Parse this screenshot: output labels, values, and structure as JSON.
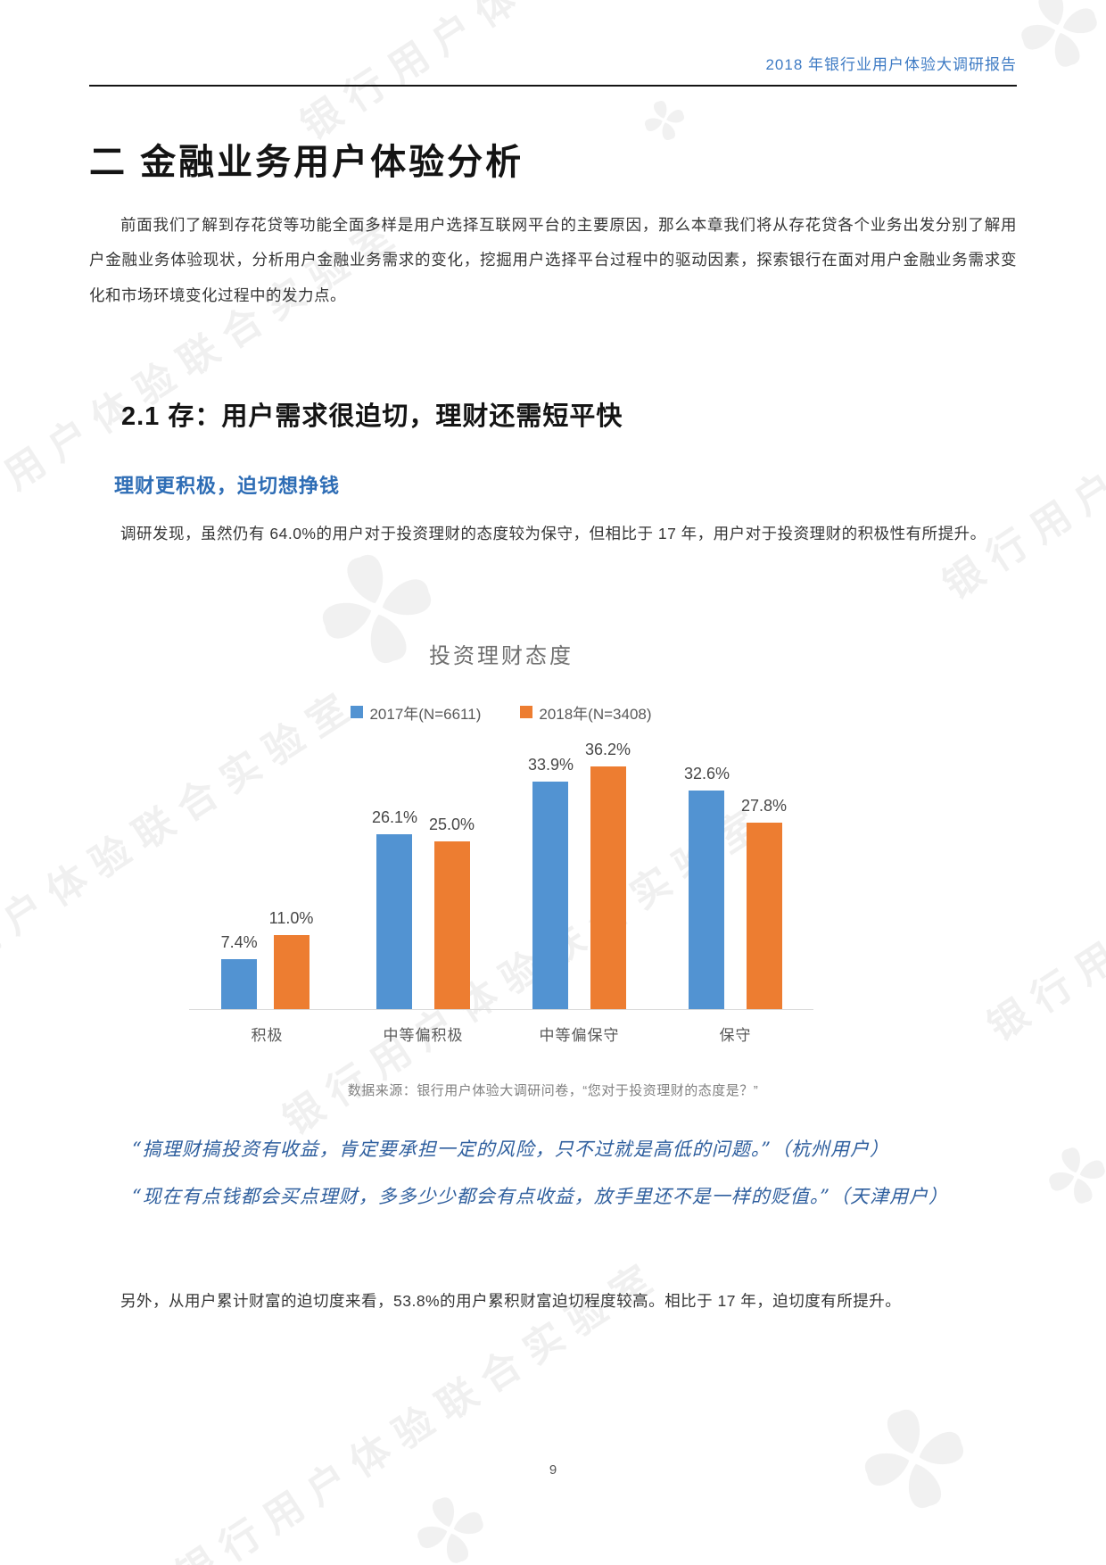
{
  "page": {
    "header": "2018 年银行业用户体验大调研报告",
    "page_number": "9",
    "watermark_text": "银行用户体验联合实验室"
  },
  "chapter": {
    "title": "二 金融业务用户体验分析",
    "intro": "前面我们了解到存花贷等功能全面多样是用户选择互联网平台的主要原因，那么本章我们将从存花贷各个业务出发分别了解用户金融业务体验现状，分析用户金融业务需求的变化，挖掘用户选择平台过程中的驱动因素，探索银行在面对用户金融业务需求变化和市场环境变化过程中的发力点。"
  },
  "section": {
    "title": "2.1 存：用户需求很迫切，理财还需短平快",
    "subtitle": "理财更积极，迫切想挣钱",
    "paragraph": "调研发现，虽然仍有 64.0%的用户对于投资理财的态度较为保守，但相比于 17 年，用户对于投资理财的积极性有所提升。"
  },
  "chart_data": {
    "type": "bar",
    "title": "投资理财态度",
    "categories": [
      "积极",
      "中等偏积极",
      "中等偏保守",
      "保守"
    ],
    "series": [
      {
        "name": "2017年(N=6611)",
        "color": "#5293D2",
        "values": [
          7.4,
          26.1,
          33.9,
          32.6
        ]
      },
      {
        "name": "2018年(N=3408)",
        "color": "#ED7D31",
        "values": [
          11.0,
          25.0,
          36.2,
          27.8
        ]
      }
    ],
    "value_suffix": "%",
    "ylim": [
      0,
      40
    ],
    "grid": false,
    "legend_position": "top",
    "source_note": "数据来源：银行用户体验大调研问卷，“您对于投资理财的态度是？”"
  },
  "quotes": [
    "“搞理财搞投资有收益，肯定要承担一定的风险，只不过就是高低的问题。”（杭州用户）",
    "“现在有点钱都会买点理财，多多少少都会有点收益，放手里还不是一样的贬值。”（天津用户）"
  ],
  "closing_paragraph": "另外，从用户累计财富的迫切度来看，53.8%的用户累积财富迫切程度较高。相比于 17 年，迫切度有所提升。"
}
